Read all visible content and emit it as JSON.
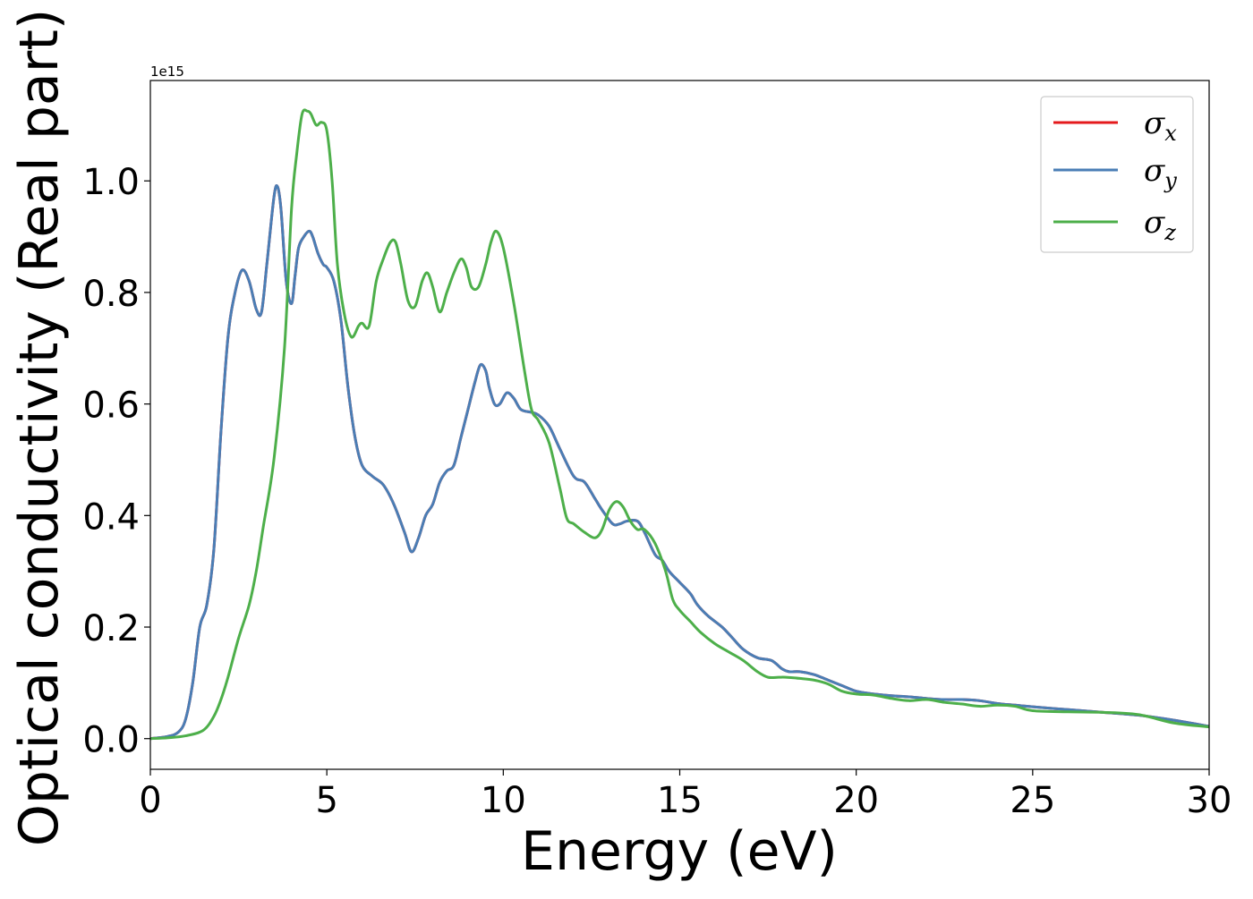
{
  "chart_data": {
    "type": "line",
    "xlabel": "Energy (eV)",
    "ylabel": "Optical conductivity (Real part)",
    "y_offset_label": "1e15",
    "xlim": [
      0,
      30
    ],
    "ylim": [
      -0.055,
      1.18
    ],
    "x_ticks": [
      0,
      5,
      10,
      15,
      20,
      25,
      30
    ],
    "x_tick_labels": [
      "0",
      "5",
      "10",
      "15",
      "20",
      "25",
      "30"
    ],
    "y_ticks": [
      0.0,
      0.2,
      0.4,
      0.6,
      0.8,
      1.0
    ],
    "y_tick_labels": [
      "0.0",
      "0.2",
      "0.4",
      "0.6",
      "0.8",
      "1.0"
    ],
    "grid": false,
    "legend_position": "top-right",
    "series": [
      {
        "name": "σx",
        "legend_symbol": "σ",
        "legend_sub": "x",
        "color": "#e41a1c",
        "x": [
          0,
          0.5,
          0.8,
          1.0,
          1.2,
          1.4,
          1.6,
          1.8,
          2.0,
          2.2,
          2.4,
          2.6,
          2.8,
          3.0,
          3.15,
          3.3,
          3.5,
          3.6,
          3.7,
          3.85,
          4.0,
          4.1,
          4.2,
          4.35,
          4.5,
          4.6,
          4.75,
          4.9,
          5.0,
          5.2,
          5.4,
          5.6,
          5.8,
          6.0,
          6.3,
          6.6,
          6.9,
          7.2,
          7.4,
          7.6,
          7.8,
          8.0,
          8.2,
          8.4,
          8.6,
          8.8,
          9.0,
          9.2,
          9.35,
          9.5,
          9.6,
          9.75,
          9.9,
          10.1,
          10.3,
          10.5,
          10.8,
          11.0,
          11.3,
          11.6,
          12.0,
          12.3,
          12.6,
          12.8,
          13.1,
          13.3,
          13.5,
          13.8,
          14.0,
          14.3,
          14.5,
          14.7,
          15.0,
          15.3,
          15.5,
          15.8,
          16.2,
          16.5,
          16.8,
          17.2,
          17.6,
          17.9,
          18.1,
          18.4,
          18.8,
          19.2,
          19.6,
          20.0,
          20.5,
          21.0,
          21.5,
          22.0,
          22.5,
          23.0,
          23.5,
          24.0,
          24.5,
          25.0,
          26.0,
          27.0,
          28.0,
          29.0,
          30.0
        ],
        "values": [
          0.0,
          0.004,
          0.012,
          0.035,
          0.1,
          0.2,
          0.24,
          0.34,
          0.55,
          0.72,
          0.8,
          0.84,
          0.82,
          0.77,
          0.765,
          0.85,
          0.97,
          0.99,
          0.95,
          0.82,
          0.78,
          0.83,
          0.88,
          0.9,
          0.91,
          0.9,
          0.87,
          0.85,
          0.845,
          0.82,
          0.75,
          0.63,
          0.54,
          0.49,
          0.47,
          0.455,
          0.42,
          0.37,
          0.335,
          0.36,
          0.4,
          0.42,
          0.46,
          0.48,
          0.49,
          0.54,
          0.59,
          0.64,
          0.67,
          0.66,
          0.63,
          0.6,
          0.6,
          0.62,
          0.61,
          0.59,
          0.585,
          0.58,
          0.56,
          0.52,
          0.47,
          0.46,
          0.43,
          0.41,
          0.385,
          0.385,
          0.39,
          0.39,
          0.37,
          0.33,
          0.32,
          0.3,
          0.28,
          0.26,
          0.24,
          0.22,
          0.2,
          0.18,
          0.16,
          0.145,
          0.14,
          0.125,
          0.12,
          0.12,
          0.115,
          0.105,
          0.095,
          0.085,
          0.08,
          0.077,
          0.075,
          0.072,
          0.07,
          0.07,
          0.068,
          0.063,
          0.06,
          0.057,
          0.052,
          0.047,
          0.042,
          0.033,
          0.022
        ]
      },
      {
        "name": "σy",
        "legend_symbol": "σ",
        "legend_sub": "y",
        "color": "#4a7eb5",
        "x": [
          0,
          0.5,
          0.8,
          1.0,
          1.2,
          1.4,
          1.6,
          1.8,
          2.0,
          2.2,
          2.4,
          2.6,
          2.8,
          3.0,
          3.15,
          3.3,
          3.5,
          3.6,
          3.7,
          3.85,
          4.0,
          4.1,
          4.2,
          4.35,
          4.5,
          4.6,
          4.75,
          4.9,
          5.0,
          5.2,
          5.4,
          5.6,
          5.8,
          6.0,
          6.3,
          6.6,
          6.9,
          7.2,
          7.4,
          7.6,
          7.8,
          8.0,
          8.2,
          8.4,
          8.6,
          8.8,
          9.0,
          9.2,
          9.35,
          9.5,
          9.6,
          9.75,
          9.9,
          10.1,
          10.3,
          10.5,
          10.8,
          11.0,
          11.3,
          11.6,
          12.0,
          12.3,
          12.6,
          12.8,
          13.1,
          13.3,
          13.5,
          13.8,
          14.0,
          14.3,
          14.5,
          14.7,
          15.0,
          15.3,
          15.5,
          15.8,
          16.2,
          16.5,
          16.8,
          17.2,
          17.6,
          17.9,
          18.1,
          18.4,
          18.8,
          19.2,
          19.6,
          20.0,
          20.5,
          21.0,
          21.5,
          22.0,
          22.5,
          23.0,
          23.5,
          24.0,
          24.5,
          25.0,
          26.0,
          27.0,
          28.0,
          29.0,
          30.0
        ],
        "values": [
          0.0,
          0.004,
          0.012,
          0.035,
          0.1,
          0.2,
          0.24,
          0.34,
          0.55,
          0.72,
          0.8,
          0.84,
          0.82,
          0.77,
          0.765,
          0.85,
          0.97,
          0.99,
          0.95,
          0.82,
          0.78,
          0.83,
          0.88,
          0.9,
          0.91,
          0.9,
          0.87,
          0.85,
          0.845,
          0.82,
          0.75,
          0.63,
          0.54,
          0.49,
          0.47,
          0.455,
          0.42,
          0.37,
          0.335,
          0.36,
          0.4,
          0.42,
          0.46,
          0.48,
          0.49,
          0.54,
          0.59,
          0.64,
          0.67,
          0.66,
          0.63,
          0.6,
          0.6,
          0.62,
          0.61,
          0.59,
          0.585,
          0.58,
          0.56,
          0.52,
          0.47,
          0.46,
          0.43,
          0.41,
          0.385,
          0.385,
          0.39,
          0.39,
          0.37,
          0.33,
          0.32,
          0.3,
          0.28,
          0.26,
          0.24,
          0.22,
          0.2,
          0.18,
          0.16,
          0.145,
          0.14,
          0.125,
          0.12,
          0.12,
          0.115,
          0.105,
          0.095,
          0.085,
          0.08,
          0.077,
          0.075,
          0.072,
          0.07,
          0.07,
          0.068,
          0.063,
          0.06,
          0.057,
          0.052,
          0.047,
          0.042,
          0.033,
          0.022
        ]
      },
      {
        "name": "σz",
        "legend_symbol": "σ",
        "legend_sub": "z",
        "color": "#4daf4a",
        "x": [
          0,
          0.5,
          1.0,
          1.5,
          1.8,
          2.0,
          2.2,
          2.5,
          2.8,
          3.0,
          3.2,
          3.5,
          3.8,
          4.0,
          4.15,
          4.3,
          4.45,
          4.55,
          4.7,
          4.85,
          5.0,
          5.15,
          5.3,
          5.5,
          5.7,
          5.9,
          6.0,
          6.2,
          6.4,
          6.6,
          6.8,
          6.95,
          7.1,
          7.3,
          7.5,
          7.7,
          7.85,
          8.0,
          8.2,
          8.4,
          8.6,
          8.8,
          8.95,
          9.1,
          9.3,
          9.5,
          9.65,
          9.8,
          10.0,
          10.3,
          10.6,
          10.8,
          11.0,
          11.3,
          11.6,
          11.8,
          12.0,
          12.3,
          12.6,
          12.8,
          13.0,
          13.2,
          13.4,
          13.6,
          13.8,
          14.0,
          14.3,
          14.6,
          14.8,
          15.0,
          15.3,
          15.6,
          16.0,
          16.4,
          16.8,
          17.2,
          17.5,
          17.8,
          18.0,
          18.4,
          18.8,
          19.2,
          19.6,
          20.0,
          20.5,
          21.0,
          21.5,
          22.0,
          22.5,
          23.0,
          23.5,
          24.0,
          24.5,
          25.0,
          26.0,
          27.0,
          28.0,
          29.0,
          30.0
        ],
        "values": [
          0.0,
          0.0015,
          0.005,
          0.015,
          0.04,
          0.07,
          0.11,
          0.18,
          0.24,
          0.3,
          0.38,
          0.5,
          0.7,
          0.95,
          1.05,
          1.12,
          1.125,
          1.12,
          1.1,
          1.105,
          1.09,
          1.0,
          0.85,
          0.76,
          0.72,
          0.74,
          0.745,
          0.74,
          0.82,
          0.86,
          0.89,
          0.89,
          0.85,
          0.785,
          0.775,
          0.82,
          0.835,
          0.81,
          0.765,
          0.8,
          0.835,
          0.86,
          0.845,
          0.81,
          0.81,
          0.85,
          0.89,
          0.91,
          0.88,
          0.78,
          0.66,
          0.59,
          0.57,
          0.53,
          0.45,
          0.395,
          0.385,
          0.37,
          0.36,
          0.375,
          0.41,
          0.425,
          0.415,
          0.39,
          0.375,
          0.375,
          0.35,
          0.3,
          0.25,
          0.23,
          0.21,
          0.19,
          0.17,
          0.155,
          0.14,
          0.12,
          0.11,
          0.11,
          0.11,
          0.108,
          0.105,
          0.098,
          0.085,
          0.08,
          0.078,
          0.072,
          0.068,
          0.07,
          0.065,
          0.062,
          0.058,
          0.06,
          0.058,
          0.05,
          0.048,
          0.047,
          0.043,
          0.028,
          0.021
        ]
      }
    ]
  }
}
